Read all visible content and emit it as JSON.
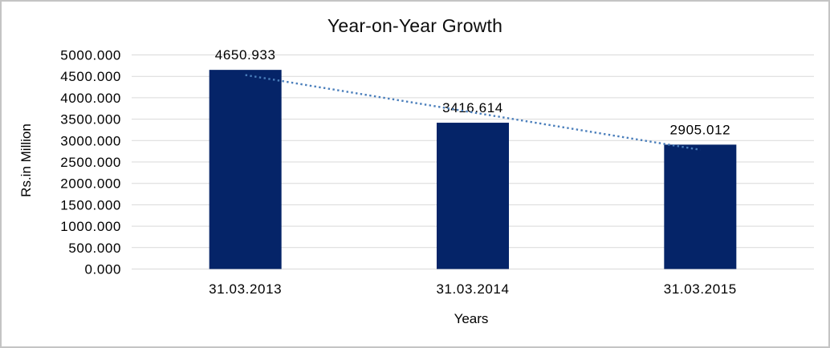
{
  "chart_data": {
    "type": "bar",
    "title": "Year-on-Year Growth",
    "xlabel": "Years",
    "ylabel": "Rs.in Million",
    "categories": [
      "31.03.2013",
      "31.03.2014",
      "31.03.2015"
    ],
    "values": [
      4650.933,
      3416.614,
      2905.012
    ],
    "data_labels": [
      "4650.933",
      "3416.614",
      "2905.012"
    ],
    "yticks": [
      "5000.000",
      "4500.000",
      "4000.000",
      "3500.000",
      "3000.000",
      "2500.000",
      "2000.000",
      "1500.000",
      "1000.000",
      "500.000",
      "0.000"
    ],
    "ylim": [
      0,
      5000
    ],
    "grid": "horizontal",
    "legend": "none",
    "trendline": {
      "type": "linear",
      "style": "dotted"
    },
    "colors": {
      "bar": "#052468",
      "trendline": "#4a7ebb",
      "gridline": "#d9d9d9",
      "frame_border": "#c4c4c4",
      "text": "#000000"
    }
  }
}
